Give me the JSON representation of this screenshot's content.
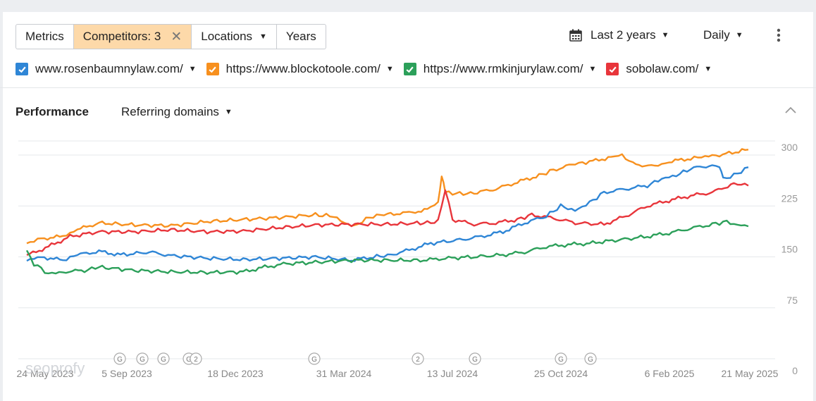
{
  "toolbar": {
    "metrics": "Metrics",
    "competitors": "Competitors: 3",
    "locations": "Locations",
    "years": "Years",
    "date_range": "Last 2 years",
    "interval": "Daily"
  },
  "legend": [
    {
      "label": "www.rosenbaumnylaw.com/",
      "color": "#2f86d6"
    },
    {
      "label": "https://www.blockotoole.com/",
      "color": "#f7901e"
    },
    {
      "label": "https://www.rmkinjurylaw.com/",
      "color": "#2ca05a"
    },
    {
      "label": "sobolaw.com/",
      "color": "#e8353b"
    }
  ],
  "panel": {
    "title": "Performance",
    "metric": "Referring domains"
  },
  "watermark": "seoprofy",
  "chart_data": {
    "type": "line",
    "x_labels": [
      "24 May 2023",
      "5 Sep 2023",
      "18 Dec 2023",
      "31 Mar 2024",
      "13 Jul 2024",
      "25 Oct 2024",
      "6 Feb 2025",
      "21 May 2025"
    ],
    "y_ticks": [
      0,
      75,
      150,
      225,
      300
    ],
    "ylim": [
      0,
      300
    ],
    "grid": true,
    "y_axis_position": "right",
    "markers": [
      "G",
      "G",
      "G",
      "G",
      "2",
      "G",
      "2",
      "G",
      "G",
      "G"
    ],
    "series": [
      {
        "name": "https://www.blockotoole.com/",
        "color": "#f7901e",
        "points": [
          [
            0,
            170
          ],
          [
            0.02,
            177
          ],
          [
            0.05,
            180
          ],
          [
            0.07,
            190
          ],
          [
            0.1,
            200
          ],
          [
            0.15,
            197
          ],
          [
            0.2,
            196
          ],
          [
            0.25,
            202
          ],
          [
            0.3,
            205
          ],
          [
            0.35,
            208
          ],
          [
            0.4,
            212
          ],
          [
            0.425,
            210
          ],
          [
            0.44,
            200
          ],
          [
            0.455,
            195
          ],
          [
            0.465,
            203
          ],
          [
            0.48,
            210
          ],
          [
            0.5,
            213
          ],
          [
            0.53,
            215
          ],
          [
            0.555,
            220
          ],
          [
            0.57,
            230
          ],
          [
            0.575,
            270
          ],
          [
            0.58,
            245
          ],
          [
            0.6,
            243
          ],
          [
            0.62,
            244
          ],
          [
            0.65,
            250
          ],
          [
            0.68,
            260
          ],
          [
            0.71,
            270
          ],
          [
            0.73,
            278
          ],
          [
            0.76,
            287
          ],
          [
            0.78,
            290
          ],
          [
            0.81,
            297
          ],
          [
            0.825,
            300
          ],
          [
            0.84,
            287
          ],
          [
            0.87,
            283
          ],
          [
            0.89,
            290
          ],
          [
            0.92,
            295
          ],
          [
            0.94,
            298
          ],
          [
            0.96,
            300
          ],
          [
            1.0,
            308
          ]
        ]
      },
      {
        "name": "sobolaw.com/",
        "color": "#e8353b",
        "points": [
          [
            0,
            152
          ],
          [
            0.03,
            165
          ],
          [
            0.06,
            180
          ],
          [
            0.1,
            187
          ],
          [
            0.15,
            187
          ],
          [
            0.2,
            190
          ],
          [
            0.25,
            187
          ],
          [
            0.3,
            188
          ],
          [
            0.35,
            193
          ],
          [
            0.4,
            197
          ],
          [
            0.45,
            198
          ],
          [
            0.5,
            198
          ],
          [
            0.55,
            200
          ],
          [
            0.57,
            202
          ],
          [
            0.58,
            250
          ],
          [
            0.59,
            205
          ],
          [
            0.62,
            198
          ],
          [
            0.65,
            200
          ],
          [
            0.68,
            205
          ],
          [
            0.7,
            212
          ],
          [
            0.73,
            207
          ],
          [
            0.76,
            200
          ],
          [
            0.8,
            198
          ],
          [
            0.83,
            210
          ],
          [
            0.86,
            225
          ],
          [
            0.89,
            233
          ],
          [
            0.92,
            240
          ],
          [
            0.95,
            245
          ],
          [
            0.98,
            258
          ],
          [
            1.0,
            255
          ]
        ]
      },
      {
        "name": "www.rosenbaumnylaw.com/",
        "color": "#2f86d6",
        "points": [
          [
            0,
            145
          ],
          [
            0.02,
            150
          ],
          [
            0.05,
            145
          ],
          [
            0.07,
            153
          ],
          [
            0.1,
            158
          ],
          [
            0.13,
            153
          ],
          [
            0.17,
            157
          ],
          [
            0.2,
            152
          ],
          [
            0.25,
            148
          ],
          [
            0.3,
            146
          ],
          [
            0.35,
            148
          ],
          [
            0.4,
            150
          ],
          [
            0.45,
            145
          ],
          [
            0.48,
            150
          ],
          [
            0.5,
            152
          ],
          [
            0.53,
            160
          ],
          [
            0.56,
            170
          ],
          [
            0.6,
            175
          ],
          [
            0.63,
            180
          ],
          [
            0.66,
            187
          ],
          [
            0.69,
            200
          ],
          [
            0.72,
            210
          ],
          [
            0.74,
            225
          ],
          [
            0.76,
            218
          ],
          [
            0.78,
            230
          ],
          [
            0.8,
            245
          ],
          [
            0.83,
            250
          ],
          [
            0.86,
            255
          ],
          [
            0.88,
            265
          ],
          [
            0.9,
            270
          ],
          [
            0.92,
            280
          ],
          [
            0.95,
            285
          ],
          [
            0.96,
            283
          ],
          [
            0.965,
            265
          ],
          [
            0.98,
            270
          ],
          [
            1.0,
            282
          ]
        ]
      },
      {
        "name": "https://www.rmkinjurylaw.com/",
        "color": "#2ca05a",
        "points": [
          [
            0,
            158
          ],
          [
            0.01,
            140
          ],
          [
            0.03,
            125
          ],
          [
            0.05,
            128
          ],
          [
            0.08,
            130
          ],
          [
            0.1,
            135
          ],
          [
            0.15,
            130
          ],
          [
            0.2,
            128
          ],
          [
            0.25,
            127
          ],
          [
            0.3,
            128
          ],
          [
            0.33,
            135
          ],
          [
            0.36,
            140
          ],
          [
            0.4,
            142
          ],
          [
            0.45,
            145
          ],
          [
            0.5,
            145
          ],
          [
            0.55,
            145
          ],
          [
            0.58,
            148
          ],
          [
            0.62,
            150
          ],
          [
            0.66,
            153
          ],
          [
            0.69,
            157
          ],
          [
            0.72,
            165
          ],
          [
            0.75,
            168
          ],
          [
            0.78,
            170
          ],
          [
            0.82,
            175
          ],
          [
            0.86,
            180
          ],
          [
            0.89,
            185
          ],
          [
            0.92,
            192
          ],
          [
            0.95,
            198
          ],
          [
            0.97,
            202
          ],
          [
            0.98,
            198
          ],
          [
            1.0,
            195
          ]
        ]
      }
    ]
  }
}
